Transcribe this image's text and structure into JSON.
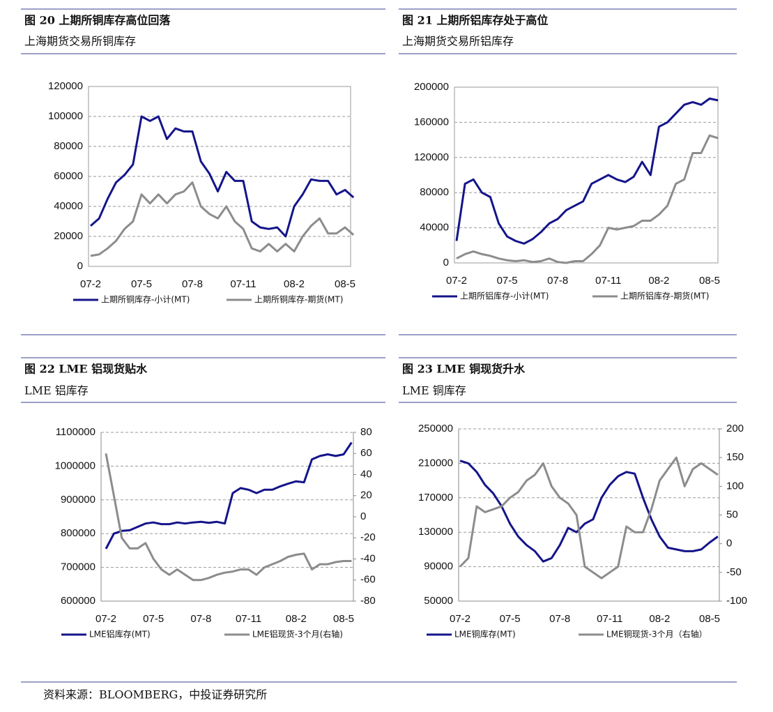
{
  "chart_data": [
    {
      "type": "line",
      "title": "图 20 上期所铜库存高位回落",
      "subtitle": "上海期货交易所铜库存",
      "categories": [
        "07-2",
        null,
        null,
        null,
        null,
        null,
        "07-5",
        null,
        null,
        null,
        null,
        null,
        "07-8",
        null,
        null,
        null,
        null,
        null,
        "07-11",
        null,
        null,
        null,
        null,
        null,
        "08-2",
        null,
        null,
        null,
        null,
        null,
        "08-5",
        null
      ],
      "ylim": [
        0,
        120000
      ],
      "yticks": [
        0,
        20000,
        40000,
        60000,
        80000,
        100000,
        120000
      ],
      "grid": true,
      "series": [
        {
          "name": "上期所铜库存-小计(MT)",
          "color": "#14148a",
          "values": [
            27000,
            32000,
            45000,
            56000,
            61000,
            68000,
            100000,
            97000,
            100000,
            85000,
            92000,
            90000,
            90000,
            70000,
            62000,
            50000,
            63000,
            57000,
            57000,
            30000,
            26000,
            25000,
            26000,
            20000,
            40000,
            48000,
            58000,
            57000,
            57000,
            48000,
            51000,
            46000
          ]
        },
        {
          "name": "上期所铜库存-期货(MT)",
          "color": "#8c8c8c",
          "values": [
            7000,
            8000,
            12000,
            17000,
            25000,
            30000,
            48000,
            42000,
            48000,
            42000,
            48000,
            50000,
            56000,
            40000,
            35000,
            32000,
            40000,
            30000,
            25000,
            12000,
            10000,
            15000,
            10000,
            15000,
            10000,
            20000,
            27000,
            32000,
            22000,
            22000,
            26000,
            21000
          ]
        }
      ]
    },
    {
      "type": "line",
      "title": "图 21 上期所铝库存处于高位",
      "subtitle": "上海期货交易所铝库存",
      "categories": [
        "07-2",
        null,
        null,
        null,
        null,
        null,
        "07-5",
        null,
        null,
        null,
        null,
        null,
        "07-8",
        null,
        null,
        null,
        null,
        null,
        "07-11",
        null,
        null,
        null,
        null,
        null,
        "08-2",
        null,
        null,
        null,
        null,
        null,
        "08-5",
        null
      ],
      "ylim": [
        0,
        200000
      ],
      "yticks": [
        0,
        40000,
        80000,
        120000,
        160000,
        200000
      ],
      "grid": true,
      "series": [
        {
          "name": "上期所铝库存-小计(MT)",
          "color": "#14148a",
          "values": [
            25000,
            90000,
            95000,
            80000,
            75000,
            45000,
            30000,
            25000,
            22000,
            27000,
            35000,
            45000,
            50000,
            60000,
            65000,
            70000,
            90000,
            95000,
            100000,
            95000,
            92000,
            98000,
            115000,
            100000,
            155000,
            160000,
            170000,
            180000,
            183000,
            180000,
            187000,
            185000
          ]
        },
        {
          "name": "上期所铝库存-期货(MT)",
          "color": "#8c8c8c",
          "values": [
            5000,
            10000,
            13000,
            10000,
            8000,
            5000,
            3000,
            2000,
            3000,
            1000,
            2000,
            5000,
            1000,
            0,
            2000,
            2000,
            10000,
            20000,
            40000,
            38000,
            40000,
            42000,
            48000,
            48000,
            55000,
            65000,
            90000,
            95000,
            125000,
            125000,
            145000,
            142000
          ]
        }
      ]
    },
    {
      "type": "line",
      "title": "图 22 LME 铝现货贴水",
      "subtitle": "LME 铝库存",
      "categories": [
        "07-2",
        null,
        null,
        null,
        null,
        null,
        "07-5",
        null,
        null,
        null,
        null,
        null,
        "07-8",
        null,
        null,
        null,
        null,
        null,
        "07-11",
        null,
        null,
        null,
        null,
        null,
        "08-2",
        null,
        null,
        null,
        null,
        null,
        "08-5",
        null
      ],
      "ylim": [
        600000,
        1100000
      ],
      "yticks": [
        600000,
        700000,
        800000,
        900000,
        1000000,
        1100000
      ],
      "y2lim": [
        -80,
        80
      ],
      "y2ticks": [
        -80,
        -60,
        -40,
        -20,
        0,
        20,
        40,
        60,
        80
      ],
      "grid": true,
      "series": [
        {
          "name": "LME铝库存(MT)",
          "color": "#14148a",
          "values": [
            755000,
            800000,
            808000,
            810000,
            820000,
            830000,
            833000,
            828000,
            828000,
            833000,
            830000,
            833000,
            835000,
            832000,
            835000,
            830000,
            920000,
            935000,
            930000,
            920000,
            930000,
            930000,
            940000,
            948000,
            955000,
            952000,
            1020000,
            1030000,
            1035000,
            1030000,
            1035000,
            1070000
          ]
        },
        {
          "name": "LME铝现货-3个月(右轴)",
          "color": "#8c8c8c",
          "axis": "y2",
          "values": [
            60,
            20,
            -20,
            -30,
            -30,
            -25,
            -40,
            -50,
            -55,
            -50,
            -55,
            -60,
            -60,
            -58,
            -55,
            -53,
            -52,
            -50,
            -50,
            -55,
            -48,
            -45,
            -42,
            -38,
            -36,
            -35,
            -50,
            -45,
            -45,
            -43,
            -42,
            -42
          ]
        }
      ]
    },
    {
      "type": "line",
      "title": "图 23 LME 铜现货升水",
      "subtitle": "LME 铜库存",
      "categories": [
        "07-2",
        null,
        null,
        null,
        null,
        null,
        "07-5",
        null,
        null,
        null,
        null,
        null,
        "07-8",
        null,
        null,
        null,
        null,
        null,
        "07-11",
        null,
        null,
        null,
        null,
        null,
        "08-2",
        null,
        null,
        null,
        null,
        null,
        "08-5",
        null
      ],
      "ylim": [
        50000,
        250000
      ],
      "yticks": [
        50000,
        90000,
        130000,
        170000,
        210000,
        250000
      ],
      "y2lim": [
        -100,
        200
      ],
      "y2ticks": [
        -100,
        -50,
        0,
        50,
        100,
        150,
        200
      ],
      "grid": true,
      "series": [
        {
          "name": "LME铜库存(MT)",
          "color": "#14148a",
          "values": [
            213000,
            210000,
            200000,
            185000,
            175000,
            160000,
            140000,
            125000,
            115000,
            108000,
            96000,
            100000,
            115000,
            135000,
            130000,
            140000,
            145000,
            170000,
            185000,
            195000,
            200000,
            198000,
            170000,
            145000,
            125000,
            112000,
            110000,
            108000,
            108000,
            110000,
            118000,
            125000
          ]
        },
        {
          "name": "LME铜现货-3个月（右轴）",
          "color": "#8c8c8c",
          "axis": "y2",
          "values": [
            -40,
            -25,
            65,
            55,
            60,
            65,
            80,
            90,
            110,
            120,
            140,
            100,
            80,
            70,
            50,
            -40,
            -50,
            -60,
            -50,
            -40,
            30,
            20,
            20,
            60,
            110,
            130,
            150,
            100,
            130,
            140,
            130,
            120
          ]
        }
      ]
    }
  ],
  "source": "资料来源：BLOOMBERG，中投证券研究所"
}
